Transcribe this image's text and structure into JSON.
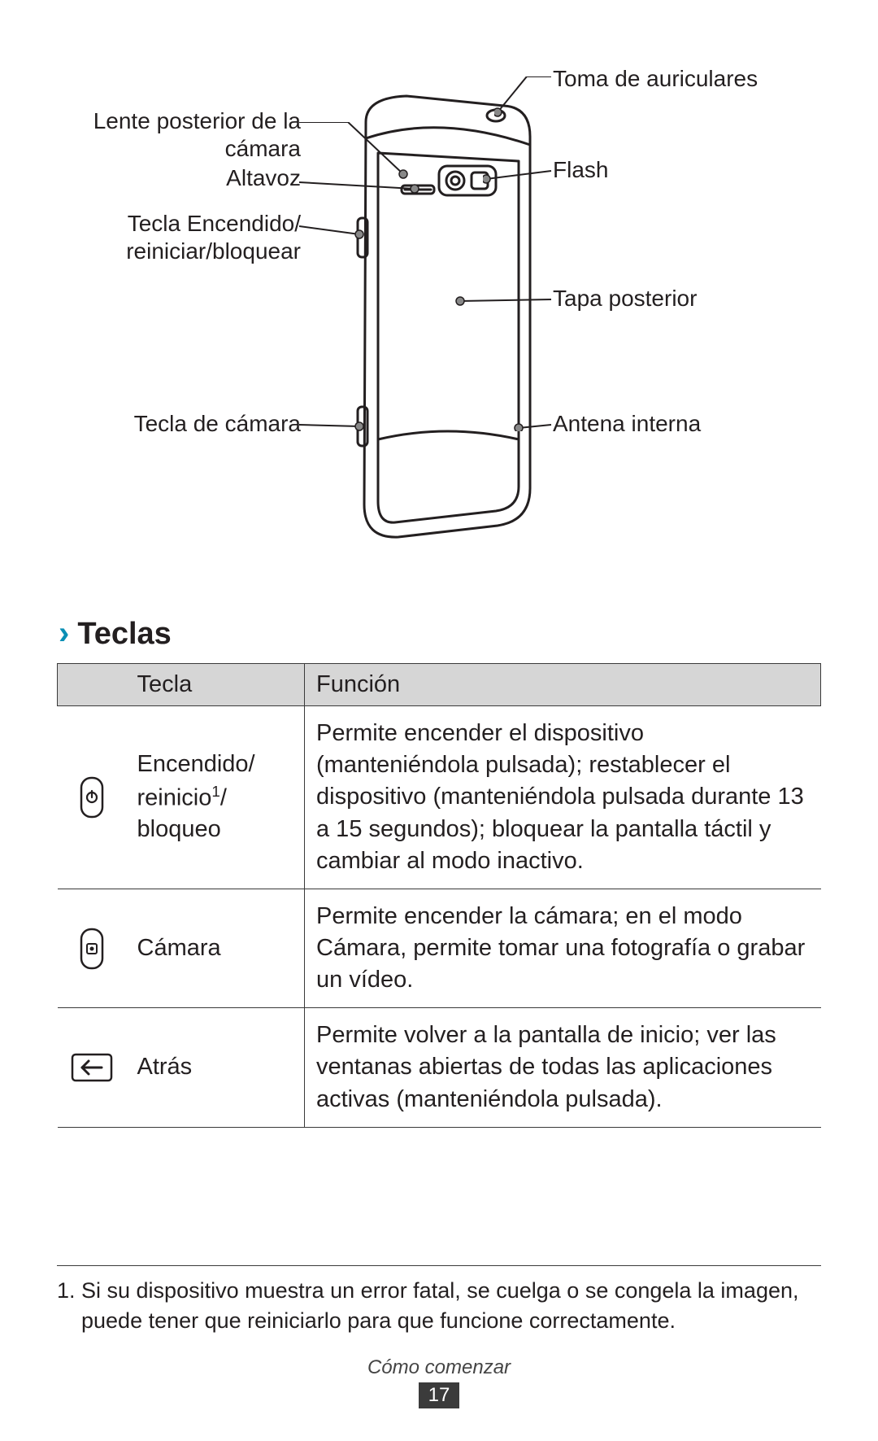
{
  "diagram": {
    "labels_left": [
      {
        "text": "Lente posterior de la\ncámara"
      },
      {
        "text": "Altavoz"
      },
      {
        "text": "Tecla Encendido/\nreiniciar/bloquear"
      },
      {
        "text": "Tecla de cámara"
      }
    ],
    "labels_right": [
      {
        "text": "Toma de auriculares"
      },
      {
        "text": "Flash"
      },
      {
        "text": "Tapa posterior"
      },
      {
        "text": "Antena interna"
      }
    ]
  },
  "section": {
    "title": "Teclas"
  },
  "table": {
    "headers": {
      "key": "Tecla",
      "func": "Función"
    },
    "rows": [
      {
        "name_html": "Encendido/\nreinicio<sup>1</sup>/\nbloqueo",
        "func": "Permite encender el dispositivo (manteniéndola pulsada); restablecer el dispositivo (manteniéndola pulsada durante 13 a 15 segundos); bloquear la pantalla táctil y cambiar al modo inactivo."
      },
      {
        "name_html": "Cámara",
        "func": "Permite encender la cámara; en el modo Cámara, permite tomar una fotografía o grabar un vídeo."
      },
      {
        "name_html": "Atrás",
        "func": "Permite volver a la pantalla de inicio; ver las ventanas abiertas de todas las aplicaciones activas (manteniéndola pulsada)."
      }
    ]
  },
  "footnote": "1.  Si su dispositivo muestra un error fatal, se cuelga o se congela la imagen, puede tener que reiniciarlo para que funcione correctamente.",
  "footer": {
    "section": "Cómo comenzar",
    "page": "17"
  }
}
